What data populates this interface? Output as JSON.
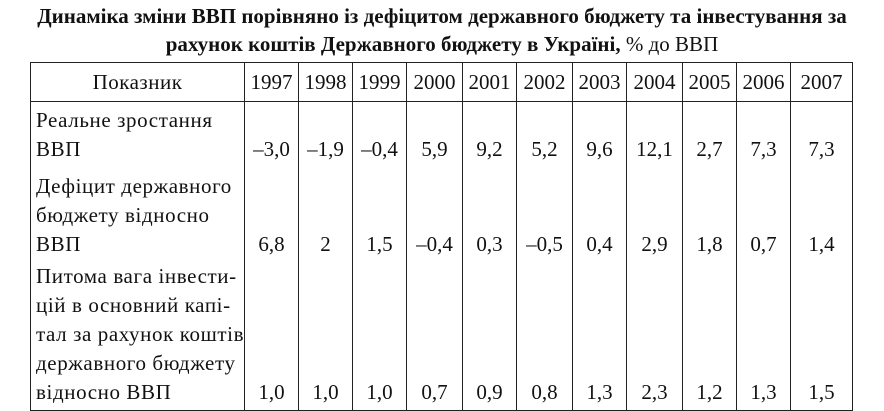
{
  "title": {
    "line1": "Динаміка зміни ВВП порівняно із дефіцитом державного бюджету та інвестування за",
    "line2": "рахунок коштів Державного бюджету в Україні,",
    "line2_suffix": "% до ВВП"
  },
  "table": {
    "header": [
      "Показник",
      "1997",
      "1998",
      "1999",
      "2000",
      "2001",
      "2002",
      "2003",
      "2004",
      "2005",
      "2006",
      "2007"
    ],
    "rows": [
      {
        "label_lines": [
          "Реальне зростання",
          "ВВП"
        ],
        "values": [
          "–3,0",
          "–1,9",
          "–0,4",
          "5,9",
          "9,2",
          "5,2",
          "9,6",
          "12,1",
          "2,7",
          "7,3",
          "7,3"
        ]
      },
      {
        "label_lines": [
          "Дефіцит державного",
          "бюджету відносно",
          "ВВП"
        ],
        "values": [
          "6,8",
          "2",
          "1,5",
          "–0,4",
          "0,3",
          "–0,5",
          "0,4",
          "2,9",
          "1,8",
          "0,7",
          "1,4"
        ]
      },
      {
        "label_lines": [
          "Питома вага інвести-",
          "цій в основний капі-",
          "тал за рахунок коштів",
          "державного бюджету",
          "відносно ВВП"
        ],
        "values": [
          "1,0",
          "1,0",
          "1,0",
          "0,7",
          "0,9",
          "0,8",
          "1,3",
          "2,3",
          "1,2",
          "1,3",
          "1,5"
        ]
      }
    ]
  }
}
